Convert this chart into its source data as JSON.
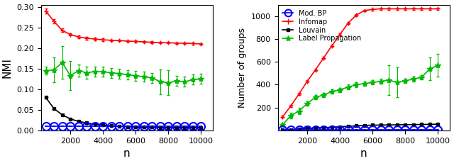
{
  "n": [
    500,
    1000,
    1500,
    2000,
    2500,
    3000,
    3500,
    4000,
    4500,
    5000,
    5500,
    6000,
    6500,
    7000,
    7500,
    8000,
    8500,
    9000,
    9500,
    10000
  ],
  "nmi_infomap": [
    0.29,
    0.265,
    0.243,
    0.233,
    0.227,
    0.224,
    0.222,
    0.22,
    0.219,
    0.218,
    0.217,
    0.216,
    0.215,
    0.214,
    0.213,
    0.213,
    0.212,
    0.212,
    0.211,
    0.21
  ],
  "nmi_infomap_err": [
    0.006,
    0.005,
    0.004,
    0.003,
    0.003,
    0.003,
    0.003,
    0.003,
    0.002,
    0.002,
    0.002,
    0.002,
    0.002,
    0.002,
    0.002,
    0.002,
    0.002,
    0.002,
    0.002,
    0.002
  ],
  "nmi_louvain": [
    0.08,
    0.053,
    0.038,
    0.028,
    0.022,
    0.018,
    0.015,
    0.013,
    0.011,
    0.01,
    0.009,
    0.008,
    0.008,
    0.008,
    0.007,
    0.007,
    0.007,
    0.007,
    0.007,
    0.007
  ],
  "nmi_louvain_err": [
    0.003,
    0.002,
    0.001,
    0.001,
    0.001,
    0.001,
    0.001,
    0.001,
    0.001,
    0.001,
    0.001,
    0.001,
    0.001,
    0.001,
    0.001,
    0.001,
    0.001,
    0.001,
    0.001,
    0.001
  ],
  "nmi_modbp": [
    0.01,
    0.01,
    0.01,
    0.01,
    0.01,
    0.01,
    0.01,
    0.01,
    0.01,
    0.01,
    0.01,
    0.01,
    0.01,
    0.01,
    0.01,
    0.01,
    0.01,
    0.01,
    0.01,
    0.01
  ],
  "nmi_modbp_err": [
    0.0,
    0.0,
    0.0,
    0.0,
    0.0,
    0.0,
    0.0,
    0.0,
    0.0,
    0.0,
    0.0,
    0.0,
    0.0,
    0.0,
    0.0,
    0.0,
    0.0,
    0.0,
    0.0,
    0.0
  ],
  "nmi_labelprop": [
    0.145,
    0.147,
    0.165,
    0.133,
    0.145,
    0.14,
    0.143,
    0.142,
    0.14,
    0.138,
    0.135,
    0.133,
    0.13,
    0.128,
    0.118,
    0.116,
    0.12,
    0.118,
    0.123,
    0.125
  ],
  "nmi_labelprop_err": [
    0.01,
    0.03,
    0.04,
    0.035,
    0.015,
    0.015,
    0.012,
    0.012,
    0.012,
    0.012,
    0.012,
    0.012,
    0.012,
    0.012,
    0.03,
    0.03,
    0.012,
    0.012,
    0.012,
    0.012
  ],
  "grp_infomap": [
    120,
    215,
    320,
    430,
    530,
    635,
    740,
    840,
    940,
    1010,
    1050,
    1060,
    1065,
    1065,
    1065,
    1065,
    1065,
    1065,
    1065,
    1065
  ],
  "grp_infomap_err": [
    8,
    8,
    8,
    8,
    8,
    8,
    8,
    8,
    8,
    8,
    8,
    8,
    8,
    8,
    8,
    8,
    8,
    8,
    8,
    8
  ],
  "grp_louvain": [
    5,
    8,
    12,
    16,
    20,
    24,
    28,
    32,
    36,
    40,
    44,
    46,
    47,
    48,
    49,
    50,
    51,
    52,
    53,
    55
  ],
  "grp_louvain_err": [
    1,
    1,
    1,
    1,
    1,
    1,
    1,
    1,
    1,
    1,
    1,
    1,
    1,
    1,
    1,
    1,
    1,
    1,
    1,
    2
  ],
  "grp_modbp": [
    5,
    5,
    5,
    5,
    5,
    5,
    5,
    5,
    5,
    5,
    5,
    5,
    5,
    5,
    5,
    5,
    5,
    5,
    5,
    5
  ],
  "grp_modbp_err": [
    0,
    0,
    0,
    0,
    0,
    0,
    0,
    0,
    0,
    0,
    0,
    0,
    0,
    0,
    0,
    0,
    0,
    0,
    0,
    0
  ],
  "grp_labelprop": [
    50,
    130,
    170,
    235,
    290,
    310,
    340,
    355,
    380,
    400,
    410,
    420,
    430,
    440,
    420,
    435,
    450,
    465,
    540,
    570
  ],
  "grp_labelprop_err": [
    10,
    25,
    25,
    20,
    20,
    20,
    20,
    20,
    20,
    20,
    20,
    20,
    20,
    130,
    130,
    20,
    20,
    20,
    100,
    100
  ],
  "color_modbp": "#0000ff",
  "color_infomap": "#ff0000",
  "color_louvain": "#000000",
  "color_labelprop": "#00bb00",
  "xlabel": "n",
  "ylabel_left": "NMI",
  "ylabel_right": "Number of groups",
  "legend_labels": [
    "Mod. BP",
    "Infomap",
    "Louvain",
    "Label Propagation"
  ],
  "nmi_ylim": [
    0.0,
    0.305
  ],
  "grp_ylim": [
    0,
    1100
  ],
  "xlim": [
    200,
    10700
  ]
}
